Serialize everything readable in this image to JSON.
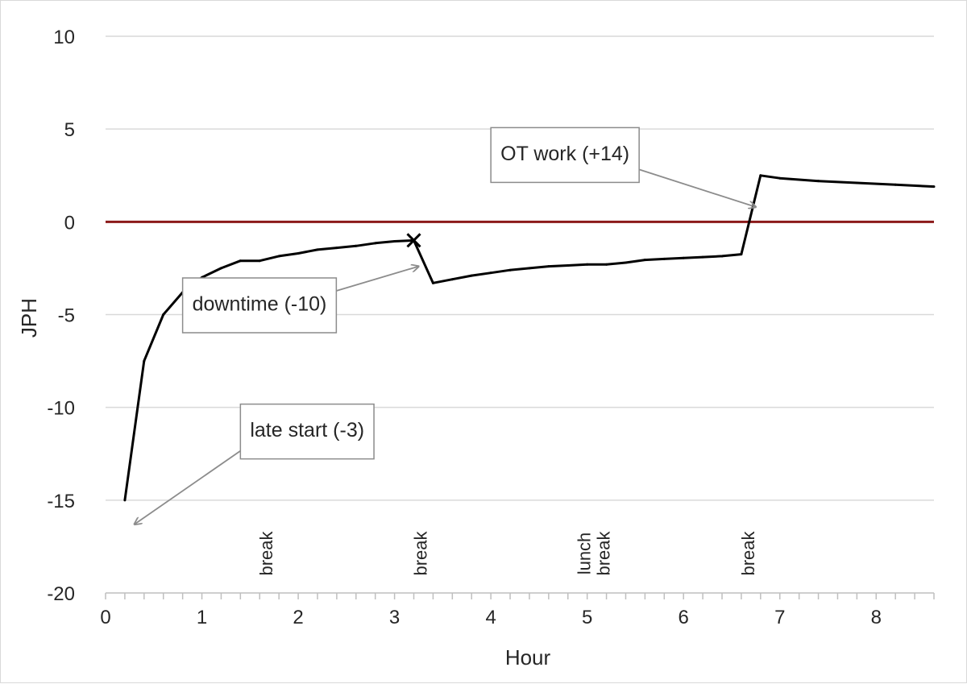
{
  "chart_data": {
    "type": "line",
    "title": "",
    "xlabel": "Hour",
    "ylabel": "JPH",
    "xlim": [
      0,
      8.6
    ],
    "ylim": [
      -20,
      10
    ],
    "x_ticks": [
      0,
      1,
      2,
      3,
      4,
      5,
      6,
      7,
      8
    ],
    "x_minor_step": 0.2,
    "y_ticks": [
      10,
      5,
      0,
      -5,
      -10,
      -15,
      -20
    ],
    "grid": "horizontal",
    "legend": "none",
    "reference_line": {
      "y": 0,
      "color": "#8b1a1a"
    },
    "series": [
      {
        "color": "#000000",
        "points": [
          [
            0.2,
            -15
          ],
          [
            0.4,
            -7.5
          ],
          [
            0.6,
            -5
          ],
          [
            0.8,
            -3.8
          ],
          [
            1.0,
            -3.0
          ],
          [
            1.2,
            -2.5
          ],
          [
            1.4,
            -2.1
          ],
          [
            1.6,
            -2.1
          ],
          [
            1.8,
            -1.85
          ],
          [
            2.0,
            -1.7
          ],
          [
            2.2,
            -1.5
          ],
          [
            2.4,
            -1.4
          ],
          [
            2.6,
            -1.3
          ],
          [
            2.8,
            -1.15
          ],
          [
            3.0,
            -1.05
          ],
          [
            3.2,
            -1.0
          ],
          [
            3.4,
            -3.3
          ],
          [
            3.6,
            -3.1
          ],
          [
            3.8,
            -2.9
          ],
          [
            4.0,
            -2.75
          ],
          [
            4.2,
            -2.6
          ],
          [
            4.4,
            -2.5
          ],
          [
            4.6,
            -2.4
          ],
          [
            4.8,
            -2.35
          ],
          [
            5.0,
            -2.3
          ],
          [
            5.2,
            -2.3
          ],
          [
            5.4,
            -2.2
          ],
          [
            5.6,
            -2.05
          ],
          [
            5.8,
            -2.0
          ],
          [
            6.0,
            -1.95
          ],
          [
            6.2,
            -1.9
          ],
          [
            6.4,
            -1.85
          ],
          [
            6.6,
            -1.75
          ],
          [
            6.8,
            2.5
          ],
          [
            7.0,
            2.35
          ],
          [
            7.4,
            2.2
          ],
          [
            7.8,
            2.1
          ],
          [
            8.2,
            2.0
          ],
          [
            8.6,
            1.9
          ]
        ]
      }
    ],
    "marker": {
      "x": 3.2,
      "y": -1.0,
      "symbol": "x"
    },
    "breaks": [
      {
        "x": 1.8,
        "label": "break"
      },
      {
        "x": 3.4,
        "label": "break"
      },
      {
        "x": 5.2,
        "label": "lunch break"
      },
      {
        "x": 6.8,
        "label": "break"
      }
    ],
    "annotations": [
      {
        "text": "late start (-3)",
        "box_x": 1.4,
        "box_y": -11.3,
        "target_x": 0.3,
        "target_y": -16.3
      },
      {
        "text": "downtime (-10)",
        "box_x": 0.8,
        "box_y": -4.5,
        "target_x": 3.25,
        "target_y": -2.4
      },
      {
        "text": "OT work (+14)",
        "box_x": 4.0,
        "box_y": 3.6,
        "target_x": 6.75,
        "target_y": 0.8
      }
    ]
  }
}
